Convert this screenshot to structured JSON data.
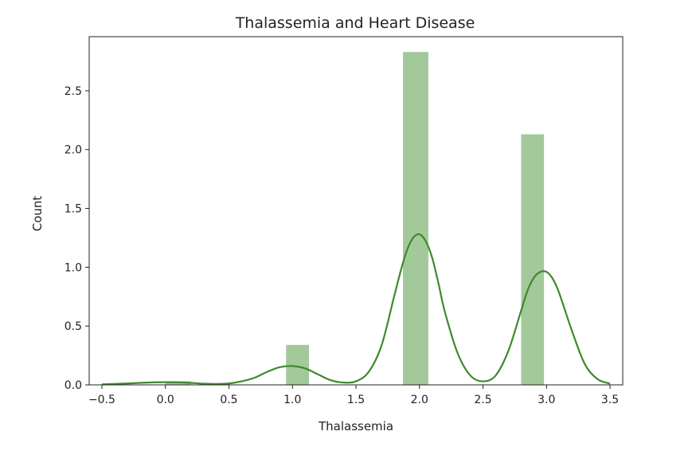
{
  "chart_data": {
    "type": "bar",
    "title": "Thalassemia and Heart Disease",
    "xlabel": "Thalassemia",
    "ylabel": "Count",
    "xlim": [
      -0.6,
      3.6
    ],
    "ylim": [
      0,
      2.96
    ],
    "x_ticks": [
      -0.5,
      0.0,
      0.5,
      1.0,
      1.5,
      2.0,
      2.5,
      3.0,
      3.5
    ],
    "x_tick_labels": [
      "−0.5",
      "0.0",
      "0.5",
      "1.0",
      "1.5",
      "2.0",
      "2.5",
      "3.0",
      "3.5"
    ],
    "y_ticks": [
      0.0,
      0.5,
      1.0,
      1.5,
      2.0,
      2.5
    ],
    "y_tick_labels": [
      "0.0",
      "0.5",
      "1.0",
      "1.5",
      "2.0",
      "2.5"
    ],
    "grid": false,
    "bar_color": "#a3c99a",
    "kde_color": "#3e8a2a",
    "bars": [
      {
        "x0": 0.0,
        "x1": 0.2,
        "value": 0.03
      },
      {
        "x0": 0.2,
        "x1": 0.4,
        "value": 0.0
      },
      {
        "x0": 0.4,
        "x1": 0.6,
        "value": 0.0
      },
      {
        "x0": 0.6,
        "x1": 0.8,
        "value": 0.0
      },
      {
        "x0": 0.8,
        "x1": 1.0,
        "value": 0.0
      },
      {
        "x0": 0.95,
        "x1": 1.13,
        "value": 0.34
      },
      {
        "x0": 1.87,
        "x1": 2.07,
        "value": 2.83
      },
      {
        "x0": 2.8,
        "x1": 2.98,
        "value": 2.13
      }
    ],
    "kde": {
      "x": [
        -0.5,
        -0.4,
        -0.3,
        -0.2,
        -0.1,
        0.0,
        0.1,
        0.2,
        0.3,
        0.4,
        0.5,
        0.6,
        0.7,
        0.8,
        0.9,
        1.0,
        1.1,
        1.2,
        1.3,
        1.4,
        1.5,
        1.6,
        1.7,
        1.8,
        1.85,
        1.9,
        1.95,
        2.0,
        2.05,
        2.1,
        2.15,
        2.2,
        2.3,
        2.4,
        2.5,
        2.6,
        2.7,
        2.8,
        2.85,
        2.9,
        2.95,
        3.0,
        3.05,
        3.1,
        3.2,
        3.3,
        3.4,
        3.5
      ],
      "y": [
        0.004,
        0.008,
        0.012,
        0.017,
        0.021,
        0.023,
        0.022,
        0.017,
        0.01,
        0.008,
        0.012,
        0.03,
        0.06,
        0.11,
        0.15,
        0.16,
        0.14,
        0.09,
        0.04,
        0.02,
        0.03,
        0.11,
        0.33,
        0.75,
        0.96,
        1.14,
        1.25,
        1.28,
        1.22,
        1.08,
        0.86,
        0.62,
        0.27,
        0.08,
        0.03,
        0.08,
        0.29,
        0.63,
        0.8,
        0.91,
        0.96,
        0.96,
        0.9,
        0.78,
        0.46,
        0.18,
        0.05,
        0.01
      ]
    }
  }
}
